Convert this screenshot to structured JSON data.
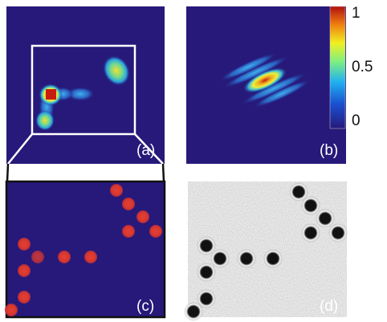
{
  "panels": [
    {
      "label": "(a)"
    },
    {
      "label": "(b)"
    },
    {
      "label": "(c)"
    },
    {
      "label": "(d)"
    }
  ],
  "colorbar": {
    "ticks": [
      0,
      0.5,
      1
    ]
  }
}
